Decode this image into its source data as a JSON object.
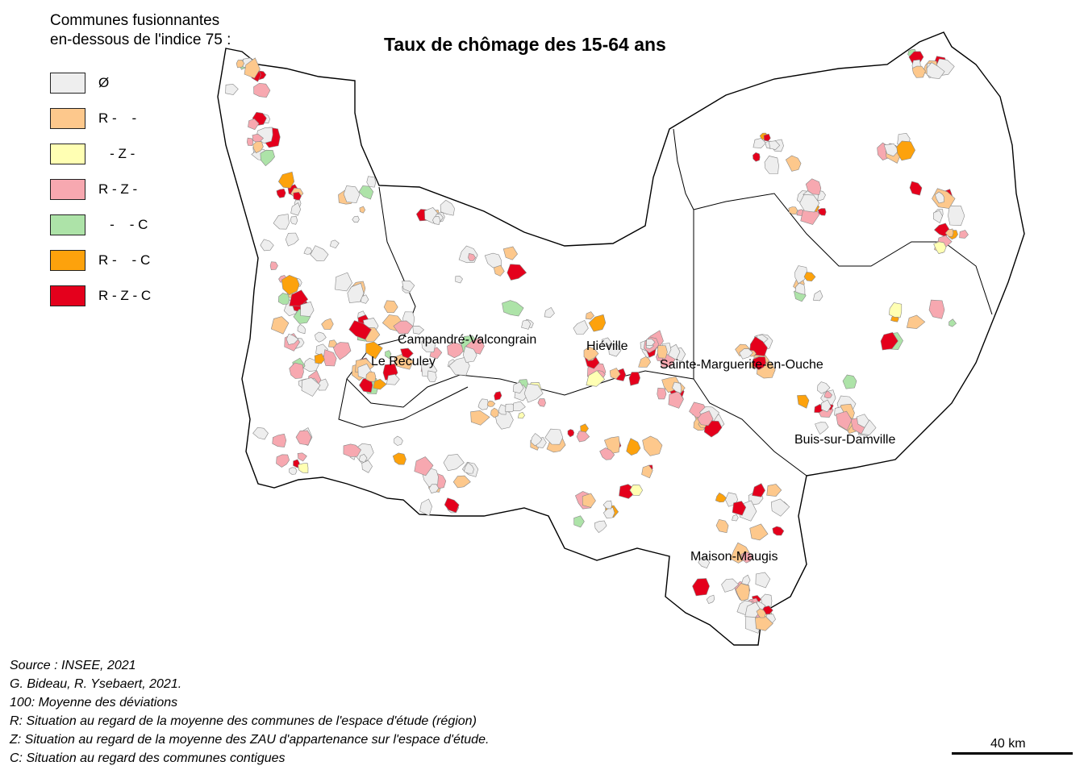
{
  "title": "Taux de chômage des 15-64 ans",
  "legend": {
    "heading_line1": "Communes fusionnantes",
    "heading_line2": "en-dessous de l'indice 75 :",
    "items": [
      {
        "label": "Ø",
        "color": "#eeeeee"
      },
      {
        "label": "R -    -",
        "color": "#fdc88c"
      },
      {
        "label": "   - Z -",
        "color": "#ffffb3"
      },
      {
        "label": "R - Z -",
        "color": "#f7a8b0"
      },
      {
        "label": "   -    - C",
        "color": "#ade3a8"
      },
      {
        "label": "R -    - C",
        "color": "#fda20c"
      },
      {
        "label": "R - Z - C",
        "color": "#e4001c"
      }
    ]
  },
  "places": [
    "Campandré-Valcongrain",
    "Le Reculey",
    "Hiéville",
    "Sainte-Marguerite-en-Ouche",
    "Buis-sur-Damville",
    "Maison-Maugis"
  ],
  "footer": [
    "Source : INSEE, 2021",
    "G. Bideau, R. Ysebaert, 2021.",
    "100: Moyenne des déviations",
    "R: Situation au regard de la moyenne des communes de l'espace d'étude (région)",
    "Z: Situation au regard de la moyenne des ZAU d'appartenance sur l'espace d'étude.",
    "C: Situation au regard des communes contigues"
  ],
  "scale": {
    "label": "40 km"
  }
}
